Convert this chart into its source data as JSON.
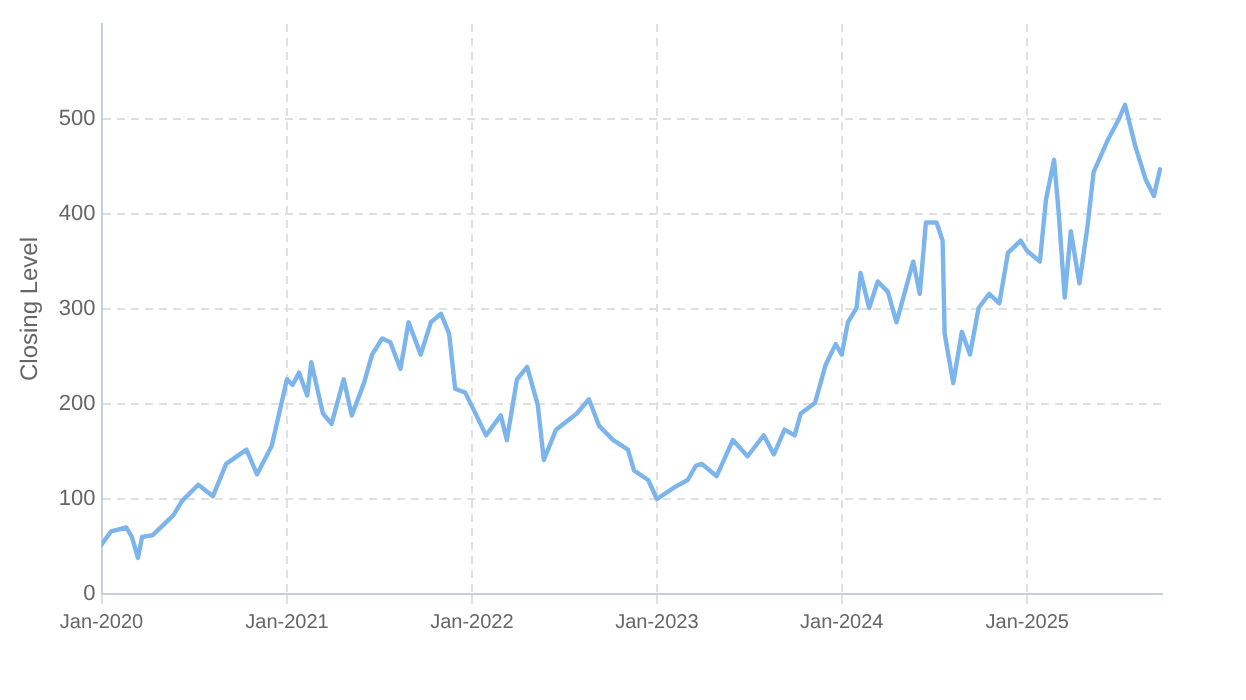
{
  "chart_data": {
    "type": "line",
    "ylabel": "Closing Level",
    "color": "#7cb5ec",
    "grid": true,
    "marker": "none",
    "line_style": "solid",
    "xlim": [
      "2020-01-01",
      "2025-09-24"
    ],
    "ylim": [
      0,
      600
    ],
    "xticks": [
      {
        "value": "2020-01",
        "label": "Jan-2020"
      },
      {
        "value": "2021-01",
        "label": "Jan-2021"
      },
      {
        "value": "2022-01",
        "label": "Jan-2022"
      },
      {
        "value": "2023-01",
        "label": "Jan-2023"
      },
      {
        "value": "2024-01",
        "label": "Jan-2024"
      },
      {
        "value": "2025-01",
        "label": "Jan-2025"
      }
    ],
    "yticks": [
      0,
      100,
      200,
      300,
      400,
      500
    ],
    "x": [
      "2020-01-01",
      "2020-01-20",
      "2020-02-19",
      "2020-03-01",
      "2020-03-13",
      "2020-03-21",
      "2020-04-11",
      "2020-05-22",
      "2020-06-08",
      "2020-07-10",
      "2020-08-08",
      "2020-09-03",
      "2020-10-13",
      "2020-11-03",
      "2020-12-02",
      "2020-12-14",
      "2021-01-01",
      "2021-01-12",
      "2021-01-25",
      "2021-02-10",
      "2021-02-18",
      "2021-03-13",
      "2021-03-30",
      "2021-04-23",
      "2021-05-09",
      "2021-06-02",
      "2021-06-18",
      "2021-07-08",
      "2021-07-24",
      "2021-08-13",
      "2021-08-29",
      "2021-09-22",
      "2021-10-12",
      "2021-11-01",
      "2021-11-17",
      "2021-11-29",
      "2021-12-19",
      "2022-01-29",
      "2022-02-27",
      "2022-03-11",
      "2022-03-31",
      "2022-04-20",
      "2022-05-11",
      "2022-05-23",
      "2022-06-16",
      "2022-07-27",
      "2022-08-20",
      "2022-09-09",
      "2022-10-07",
      "2022-11-05",
      "2022-11-17",
      "2022-12-15",
      "2023-01-01",
      "2023-02-07",
      "2023-03-03",
      "2023-03-19",
      "2023-03-31",
      "2023-04-29",
      "2023-05-31",
      "2023-06-29",
      "2023-07-31",
      "2023-08-20",
      "2023-09-10",
      "2023-09-30",
      "2023-10-12",
      "2023-11-09",
      "2023-11-30",
      "2023-12-20",
      "2024-01-01",
      "2024-01-13",
      "2024-01-30",
      "2024-02-07",
      "2024-02-24",
      "2024-03-12",
      "2024-04-01",
      "2024-04-18",
      "2024-05-21",
      "2024-06-03",
      "2024-06-15",
      "2024-07-06",
      "2024-07-18",
      "2024-07-22",
      "2024-08-08",
      "2024-08-25",
      "2024-09-10",
      "2024-09-27",
      "2024-10-18",
      "2024-11-07",
      "2024-11-24",
      "2024-12-19",
      "2025-01-01",
      "2025-01-26",
      "2025-02-07",
      "2025-02-23",
      "2025-03-04",
      "2025-03-16",
      "2025-03-28",
      "2025-04-14",
      "2025-04-30",
      "2025-05-12",
      "2025-06-10",
      "2025-07-01",
      "2025-07-13",
      "2025-08-02",
      "2025-08-23",
      "2025-09-08",
      "2025-09-20"
    ],
    "values": [
      52,
      66,
      70,
      60,
      38,
      60,
      62,
      83,
      98,
      115,
      103,
      137,
      152,
      126,
      156,
      184,
      226,
      220,
      233,
      209,
      244,
      190,
      179,
      226,
      188,
      222,
      252,
      269,
      265,
      237,
      286,
      252,
      286,
      295,
      274,
      216,
      212,
      167,
      188,
      162,
      226,
      239,
      199,
      141,
      173,
      190,
      205,
      177,
      162,
      152,
      130,
      120,
      100,
      113,
      120,
      135,
      137,
      124,
      162,
      145,
      167,
      147,
      173,
      167,
      190,
      201,
      241,
      263,
      252,
      286,
      301,
      338,
      301,
      329,
      318,
      286,
      350,
      316,
      391,
      391,
      372,
      274,
      222,
      276,
      252,
      301,
      316,
      306,
      359,
      372,
      361,
      350,
      415,
      457,
      402,
      312,
      382,
      327,
      387,
      444,
      479,
      500,
      515,
      472,
      436,
      419,
      447
    ]
  }
}
